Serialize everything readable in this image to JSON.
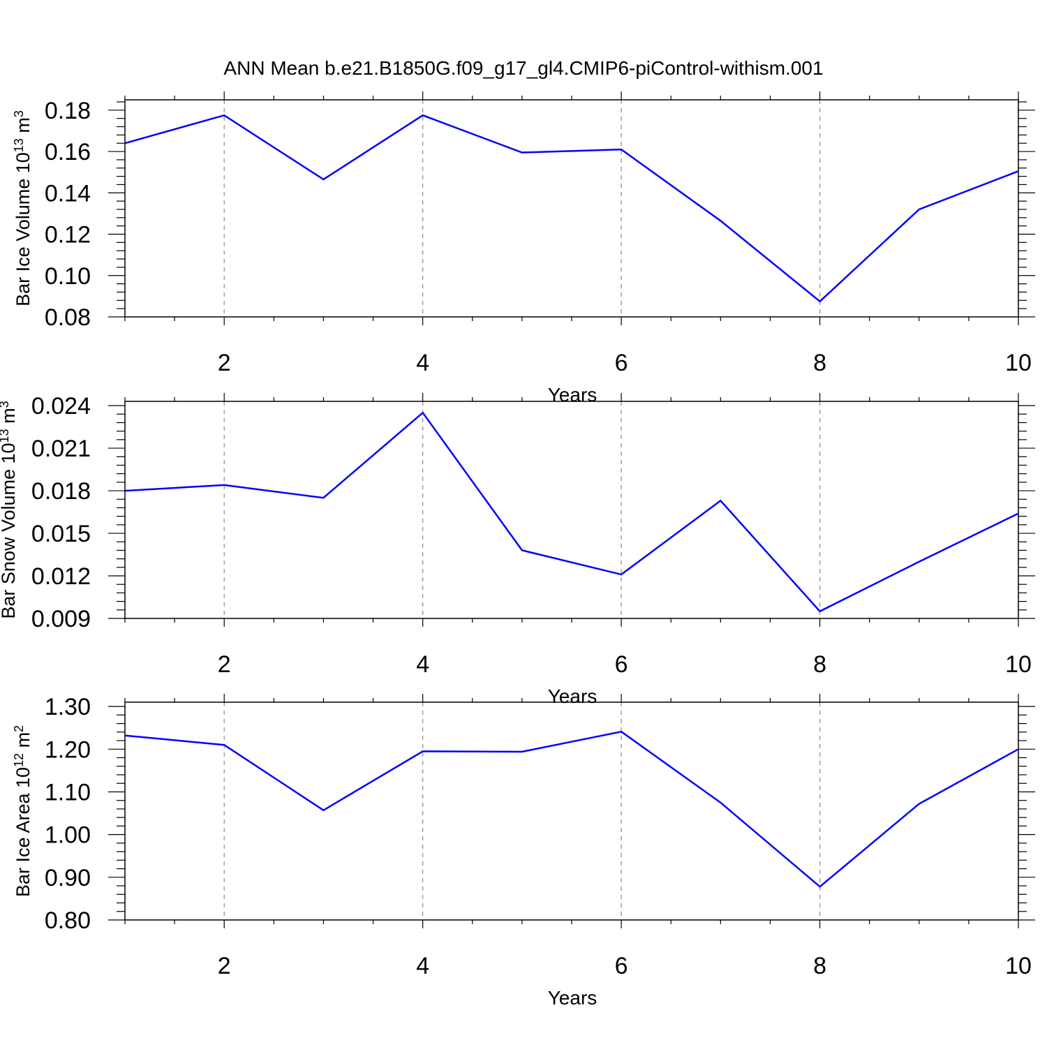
{
  "title": "ANN Mean b.e21.B1850G.f09_g17_gl4.CMIP6-piControl-withism.001",
  "chart_data": [
    {
      "type": "line",
      "ylabel": "Bar Ice Volume 10",
      "ylabel_exp": "13",
      "ylabel_unit": " m",
      "ylabel_unit_exp": "3",
      "xlabel": "Years",
      "xlim": [
        1,
        10
      ],
      "ylim": [
        0.08,
        0.185
      ],
      "xticks": [
        "2",
        "4",
        "6",
        "8",
        "10"
      ],
      "yticks": [
        "0.08",
        "0.10",
        "0.12",
        "0.14",
        "0.16",
        "0.18"
      ],
      "grid_x": "dashed at major ticks",
      "color": "#0000ff",
      "x": [
        1,
        2,
        3,
        4,
        5,
        6,
        7,
        8,
        9,
        10
      ],
      "values": [
        0.164,
        0.1775,
        0.1465,
        0.1775,
        0.1595,
        0.161,
        0.1265,
        0.0875,
        0.132,
        0.1505
      ]
    },
    {
      "type": "line",
      "ylabel": "Bar Snow Volume 10",
      "ylabel_exp": "13",
      "ylabel_unit": " m",
      "ylabel_unit_exp": "3",
      "xlabel": "Years",
      "xlim": [
        1,
        10
      ],
      "ylim": [
        0.009,
        0.0243
      ],
      "xticks": [
        "2",
        "4",
        "6",
        "8",
        "10"
      ],
      "yticks": [
        "0.009",
        "0.012",
        "0.015",
        "0.018",
        "0.021",
        "0.024"
      ],
      "grid_x": "dashed at major ticks",
      "color": "#0000ff",
      "x": [
        1,
        2,
        3,
        4,
        5,
        6,
        7,
        8,
        9,
        10
      ],
      "values": [
        0.018,
        0.0184,
        0.0175,
        0.0235,
        0.0138,
        0.0121,
        0.0173,
        0.0095,
        0.013,
        0.0164
      ]
    },
    {
      "type": "line",
      "ylabel": "Bar Ice Area 10",
      "ylabel_exp": "12",
      "ylabel_unit": " m",
      "ylabel_unit_exp": "2",
      "xlabel": "Years",
      "xlim": [
        1,
        10
      ],
      "ylim": [
        0.8,
        1.31
      ],
      "xticks": [
        "2",
        "4",
        "6",
        "8",
        "10"
      ],
      "yticks": [
        "0.80",
        "0.90",
        "1.00",
        "1.10",
        "1.20",
        "1.30"
      ],
      "grid_x": "dashed at major ticks",
      "color": "#0000ff",
      "x": [
        1,
        2,
        3,
        4,
        5,
        6,
        7,
        8,
        9,
        10
      ],
      "values": [
        1.232,
        1.21,
        1.057,
        1.195,
        1.194,
        1.241,
        1.075,
        0.878,
        1.072,
        1.2
      ]
    }
  ]
}
